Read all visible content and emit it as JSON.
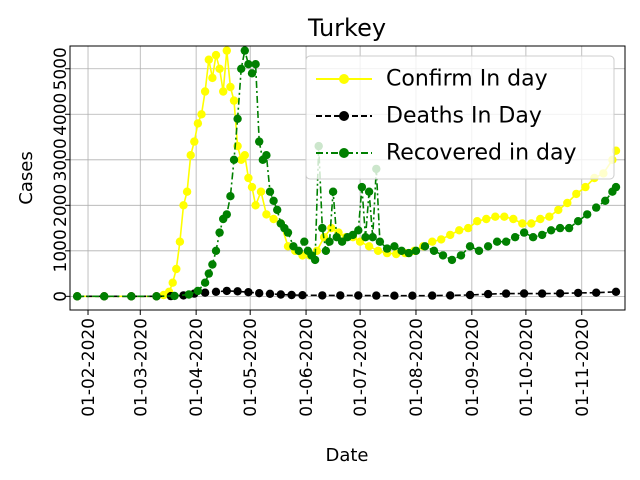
{
  "chart_data": {
    "type": "line",
    "title": "Turkey",
    "xlabel": "Date",
    "ylabel": "Cases",
    "x_range": [
      "2020-01-22",
      "2020-11-25"
    ],
    "ylim": [
      -300,
      5500
    ],
    "grid": true,
    "legend_position": "top-right",
    "x_ticks": [
      "01-02-2020",
      "01-03-2020",
      "01-04-2020",
      "01-05-2020",
      "01-06-2020",
      "01-07-2020",
      "01-08-2020",
      "01-09-2020",
      "01-10-2020",
      "01-11-2020"
    ],
    "y_ticks": [
      {
        "value": 0,
        "label": "0"
      },
      {
        "value": 1000,
        "label": "1000"
      },
      {
        "value": 2000,
        "label": "2000"
      },
      {
        "value": 3000,
        "label": "3000"
      },
      {
        "value": 4000,
        "label": "4000"
      },
      {
        "value": 5000,
        "label": "5000"
      }
    ],
    "series": [
      {
        "name": "Confirm In day",
        "color": "#ffff00",
        "style": "solid",
        "points": [
          [
            "2020-01-26",
            0
          ],
          [
            "2020-02-10",
            0
          ],
          [
            "2020-02-25",
            0
          ],
          [
            "2020-03-10",
            0
          ],
          [
            "2020-03-14",
            30
          ],
          [
            "2020-03-17",
            100
          ],
          [
            "2020-03-19",
            300
          ],
          [
            "2020-03-21",
            600
          ],
          [
            "2020-03-23",
            1200
          ],
          [
            "2020-03-25",
            2000
          ],
          [
            "2020-03-27",
            2300
          ],
          [
            "2020-03-29",
            3100
          ],
          [
            "2020-03-31",
            3400
          ],
          [
            "2020-04-02",
            3800
          ],
          [
            "2020-04-04",
            4000
          ],
          [
            "2020-04-06",
            4500
          ],
          [
            "2020-04-08",
            5200
          ],
          [
            "2020-04-10",
            4800
          ],
          [
            "2020-04-12",
            5300
          ],
          [
            "2020-04-14",
            5000
          ],
          [
            "2020-04-16",
            4500
          ],
          [
            "2020-04-18",
            5400
          ],
          [
            "2020-04-20",
            4600
          ],
          [
            "2020-04-22",
            4300
          ],
          [
            "2020-04-24",
            3300
          ],
          [
            "2020-04-26",
            3000
          ],
          [
            "2020-04-28",
            3100
          ],
          [
            "2020-04-30",
            2600
          ],
          [
            "2020-05-02",
            2400
          ],
          [
            "2020-05-04",
            2000
          ],
          [
            "2020-05-07",
            2300
          ],
          [
            "2020-05-10",
            1800
          ],
          [
            "2020-05-14",
            1700
          ],
          [
            "2020-05-18",
            1600
          ],
          [
            "2020-05-22",
            1100
          ],
          [
            "2020-05-26",
            1000
          ],
          [
            "2020-05-30",
            900
          ],
          [
            "2020-06-03",
            900
          ],
          [
            "2020-06-07",
            1000
          ],
          [
            "2020-06-11",
            1300
          ],
          [
            "2020-06-15",
            1500
          ],
          [
            "2020-06-19",
            1400
          ],
          [
            "2020-06-23",
            1300
          ],
          [
            "2020-06-27",
            1300
          ],
          [
            "2020-07-01",
            1200
          ],
          [
            "2020-07-06",
            1100
          ],
          [
            "2020-07-11",
            1000
          ],
          [
            "2020-07-16",
            950
          ],
          [
            "2020-07-21",
            930
          ],
          [
            "2020-07-26",
            950
          ],
          [
            "2020-07-31",
            1000
          ],
          [
            "2020-08-05",
            1100
          ],
          [
            "2020-08-10",
            1200
          ],
          [
            "2020-08-15",
            1250
          ],
          [
            "2020-08-20",
            1350
          ],
          [
            "2020-08-25",
            1450
          ],
          [
            "2020-08-30",
            1500
          ],
          [
            "2020-09-04",
            1650
          ],
          [
            "2020-09-09",
            1700
          ],
          [
            "2020-09-14",
            1750
          ],
          [
            "2020-09-19",
            1750
          ],
          [
            "2020-09-24",
            1700
          ],
          [
            "2020-09-29",
            1600
          ],
          [
            "2020-10-04",
            1600
          ],
          [
            "2020-10-09",
            1700
          ],
          [
            "2020-10-14",
            1750
          ],
          [
            "2020-10-19",
            1900
          ],
          [
            "2020-10-24",
            2050
          ],
          [
            "2020-10-29",
            2250
          ],
          [
            "2020-11-03",
            2400
          ],
          [
            "2020-11-08",
            2600
          ],
          [
            "2020-11-13",
            2700
          ],
          [
            "2020-11-18",
            3000
          ],
          [
            "2020-11-20",
            3200
          ]
        ]
      },
      {
        "name": "Deaths In Day",
        "color": "#000000",
        "style": "dashed",
        "points": [
          [
            "2020-01-26",
            0
          ],
          [
            "2020-02-10",
            0
          ],
          [
            "2020-02-25",
            0
          ],
          [
            "2020-03-10",
            0
          ],
          [
            "2020-03-18",
            5
          ],
          [
            "2020-03-25",
            20
          ],
          [
            "2020-03-31",
            60
          ],
          [
            "2020-04-06",
            80
          ],
          [
            "2020-04-12",
            100
          ],
          [
            "2020-04-18",
            120
          ],
          [
            "2020-04-24",
            110
          ],
          [
            "2020-04-30",
            90
          ],
          [
            "2020-05-06",
            70
          ],
          [
            "2020-05-12",
            55
          ],
          [
            "2020-05-18",
            40
          ],
          [
            "2020-05-24",
            30
          ],
          [
            "2020-05-30",
            25
          ],
          [
            "2020-06-10",
            20
          ],
          [
            "2020-06-20",
            20
          ],
          [
            "2020-06-30",
            18
          ],
          [
            "2020-07-10",
            17
          ],
          [
            "2020-07-20",
            15
          ],
          [
            "2020-07-30",
            15
          ],
          [
            "2020-08-10",
            17
          ],
          [
            "2020-08-20",
            20
          ],
          [
            "2020-08-31",
            30
          ],
          [
            "2020-09-10",
            50
          ],
          [
            "2020-09-20",
            60
          ],
          [
            "2020-09-30",
            63
          ],
          [
            "2020-10-10",
            60
          ],
          [
            "2020-10-20",
            65
          ],
          [
            "2020-10-30",
            75
          ],
          [
            "2020-11-09",
            80
          ],
          [
            "2020-11-20",
            100
          ]
        ]
      },
      {
        "name": "Recovered in day",
        "color": "#008000",
        "style": "dashdot",
        "points": [
          [
            "2020-01-26",
            0
          ],
          [
            "2020-02-10",
            0
          ],
          [
            "2020-02-25",
            0
          ],
          [
            "2020-03-10",
            0
          ],
          [
            "2020-03-20",
            10
          ],
          [
            "2020-03-28",
            40
          ],
          [
            "2020-04-02",
            120
          ],
          [
            "2020-04-06",
            300
          ],
          [
            "2020-04-08",
            500
          ],
          [
            "2020-04-10",
            700
          ],
          [
            "2020-04-12",
            1000
          ],
          [
            "2020-04-14",
            1400
          ],
          [
            "2020-04-16",
            1700
          ],
          [
            "2020-04-18",
            1800
          ],
          [
            "2020-04-20",
            2200
          ],
          [
            "2020-04-22",
            3000
          ],
          [
            "2020-04-24",
            3900
          ],
          [
            "2020-04-26",
            5000
          ],
          [
            "2020-04-28",
            5400
          ],
          [
            "2020-04-30",
            5100
          ],
          [
            "2020-05-02",
            4900
          ],
          [
            "2020-05-04",
            5100
          ],
          [
            "2020-05-06",
            3400
          ],
          [
            "2020-05-08",
            3000
          ],
          [
            "2020-05-10",
            3100
          ],
          [
            "2020-05-12",
            2300
          ],
          [
            "2020-05-14",
            2100
          ],
          [
            "2020-05-16",
            1900
          ],
          [
            "2020-05-18",
            1600
          ],
          [
            "2020-05-20",
            1500
          ],
          [
            "2020-05-22",
            1400
          ],
          [
            "2020-05-25",
            1100
          ],
          [
            "2020-05-28",
            1000
          ],
          [
            "2020-05-31",
            1200
          ],
          [
            "2020-06-02",
            1000
          ],
          [
            "2020-06-04",
            900
          ],
          [
            "2020-06-06",
            800
          ],
          [
            "2020-06-08",
            3300
          ],
          [
            "2020-06-10",
            1500
          ],
          [
            "2020-06-12",
            1000
          ],
          [
            "2020-06-14",
            1200
          ],
          [
            "2020-06-16",
            2300
          ],
          [
            "2020-06-18",
            1300
          ],
          [
            "2020-06-21",
            1200
          ],
          [
            "2020-06-24",
            1300
          ],
          [
            "2020-06-27",
            1350
          ],
          [
            "2020-06-30",
            1450
          ],
          [
            "2020-07-02",
            2400
          ],
          [
            "2020-07-04",
            1300
          ],
          [
            "2020-07-06",
            2300
          ],
          [
            "2020-07-08",
            1300
          ],
          [
            "2020-07-10",
            2800
          ],
          [
            "2020-07-12",
            1200
          ],
          [
            "2020-07-16",
            1050
          ],
          [
            "2020-07-20",
            1100
          ],
          [
            "2020-07-24",
            1000
          ],
          [
            "2020-07-28",
            950
          ],
          [
            "2020-08-01",
            1000
          ],
          [
            "2020-08-06",
            1100
          ],
          [
            "2020-08-11",
            1000
          ],
          [
            "2020-08-16",
            900
          ],
          [
            "2020-08-21",
            800
          ],
          [
            "2020-08-26",
            900
          ],
          [
            "2020-08-31",
            1100
          ],
          [
            "2020-09-05",
            1000
          ],
          [
            "2020-09-10",
            1100
          ],
          [
            "2020-09-15",
            1200
          ],
          [
            "2020-09-20",
            1200
          ],
          [
            "2020-09-25",
            1300
          ],
          [
            "2020-09-30",
            1400
          ],
          [
            "2020-10-05",
            1300
          ],
          [
            "2020-10-10",
            1350
          ],
          [
            "2020-10-15",
            1450
          ],
          [
            "2020-10-20",
            1500
          ],
          [
            "2020-10-25",
            1500
          ],
          [
            "2020-10-30",
            1650
          ],
          [
            "2020-11-04",
            1800
          ],
          [
            "2020-11-09",
            1950
          ],
          [
            "2020-11-14",
            2100
          ],
          [
            "2020-11-18",
            2300
          ],
          [
            "2020-11-20",
            2400
          ]
        ]
      }
    ]
  }
}
